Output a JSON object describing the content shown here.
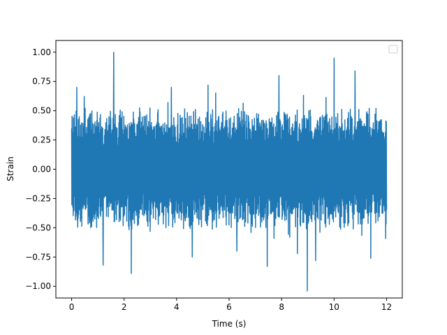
{
  "chart_data": {
    "type": "line",
    "title": "",
    "xlabel": "Time (s)",
    "ylabel": "Strain",
    "xlim": [
      -0.6,
      12.6
    ],
    "ylim": [
      -1.1,
      1.1
    ],
    "xticks": [
      0,
      2,
      4,
      6,
      8,
      10,
      12
    ],
    "xtick_labels": [
      "0",
      "2",
      "4",
      "6",
      "8",
      "10",
      "12"
    ],
    "yticks": [
      -1.0,
      -0.75,
      -0.5,
      -0.25,
      0.0,
      0.25,
      0.5,
      0.75,
      1.0
    ],
    "ytick_labels": [
      "−1.00",
      "−0.75",
      "−0.50",
      "−0.25",
      "0.00",
      "0.25",
      "0.50",
      "0.75",
      "1.00"
    ],
    "grid": false,
    "legend": {
      "placement": "upper-right",
      "entries": []
    },
    "series": [
      {
        "color": "#1f77b4",
        "x_start": 0,
        "x_end": 12,
        "samples": 1400,
        "noise_band": [
          -0.55,
          0.55
        ],
        "extremes": [
          {
            "x": 1.6,
            "y": 1.0
          },
          {
            "x": 8.98,
            "y": -1.04
          },
          {
            "x": 10.0,
            "y": 0.95
          },
          {
            "x": 2.27,
            "y": -0.89
          },
          {
            "x": 7.45,
            "y": -0.83
          },
          {
            "x": 1.2,
            "y": -0.82
          },
          {
            "x": 9.3,
            "y": -0.78
          },
          {
            "x": 10.8,
            "y": 0.84
          },
          {
            "x": 11.4,
            "y": -0.76
          },
          {
            "x": 0.2,
            "y": 0.7
          },
          {
            "x": 5.2,
            "y": 0.72
          },
          {
            "x": 7.9,
            "y": 0.8
          },
          {
            "x": 8.6,
            "y": -0.72
          },
          {
            "x": 4.6,
            "y": -0.75
          },
          {
            "x": 3.8,
            "y": 0.7
          },
          {
            "x": 6.3,
            "y": -0.7
          }
        ]
      }
    ]
  }
}
